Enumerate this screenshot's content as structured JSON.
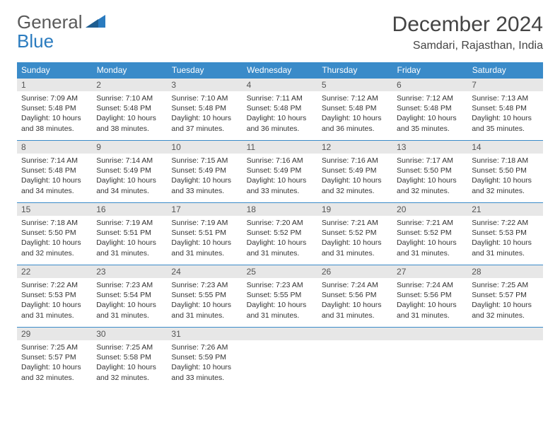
{
  "logo": {
    "line1": "General",
    "line2": "Blue",
    "text_color": "#5a5a5a",
    "accent_color": "#2a7bbf"
  },
  "title": "December 2024",
  "location": "Samdari, Rajasthan, India",
  "header_bg": "#3a8bc9",
  "header_fg": "#ffffff",
  "daynum_bg": "#e7e7e7",
  "border_color": "#3a8bc9",
  "weekdays": [
    "Sunday",
    "Monday",
    "Tuesday",
    "Wednesday",
    "Thursday",
    "Friday",
    "Saturday"
  ],
  "days": [
    {
      "n": "1",
      "sr": "7:09 AM",
      "ss": "5:48 PM",
      "dl": "10 hours and 38 minutes."
    },
    {
      "n": "2",
      "sr": "7:10 AM",
      "ss": "5:48 PM",
      "dl": "10 hours and 38 minutes."
    },
    {
      "n": "3",
      "sr": "7:10 AM",
      "ss": "5:48 PM",
      "dl": "10 hours and 37 minutes."
    },
    {
      "n": "4",
      "sr": "7:11 AM",
      "ss": "5:48 PM",
      "dl": "10 hours and 36 minutes."
    },
    {
      "n": "5",
      "sr": "7:12 AM",
      "ss": "5:48 PM",
      "dl": "10 hours and 36 minutes."
    },
    {
      "n": "6",
      "sr": "7:12 AM",
      "ss": "5:48 PM",
      "dl": "10 hours and 35 minutes."
    },
    {
      "n": "7",
      "sr": "7:13 AM",
      "ss": "5:48 PM",
      "dl": "10 hours and 35 minutes."
    },
    {
      "n": "8",
      "sr": "7:14 AM",
      "ss": "5:48 PM",
      "dl": "10 hours and 34 minutes."
    },
    {
      "n": "9",
      "sr": "7:14 AM",
      "ss": "5:49 PM",
      "dl": "10 hours and 34 minutes."
    },
    {
      "n": "10",
      "sr": "7:15 AM",
      "ss": "5:49 PM",
      "dl": "10 hours and 33 minutes."
    },
    {
      "n": "11",
      "sr": "7:16 AM",
      "ss": "5:49 PM",
      "dl": "10 hours and 33 minutes."
    },
    {
      "n": "12",
      "sr": "7:16 AM",
      "ss": "5:49 PM",
      "dl": "10 hours and 32 minutes."
    },
    {
      "n": "13",
      "sr": "7:17 AM",
      "ss": "5:50 PM",
      "dl": "10 hours and 32 minutes."
    },
    {
      "n": "14",
      "sr": "7:18 AM",
      "ss": "5:50 PM",
      "dl": "10 hours and 32 minutes."
    },
    {
      "n": "15",
      "sr": "7:18 AM",
      "ss": "5:50 PM",
      "dl": "10 hours and 32 minutes."
    },
    {
      "n": "16",
      "sr": "7:19 AM",
      "ss": "5:51 PM",
      "dl": "10 hours and 31 minutes."
    },
    {
      "n": "17",
      "sr": "7:19 AM",
      "ss": "5:51 PM",
      "dl": "10 hours and 31 minutes."
    },
    {
      "n": "18",
      "sr": "7:20 AM",
      "ss": "5:52 PM",
      "dl": "10 hours and 31 minutes."
    },
    {
      "n": "19",
      "sr": "7:21 AM",
      "ss": "5:52 PM",
      "dl": "10 hours and 31 minutes."
    },
    {
      "n": "20",
      "sr": "7:21 AM",
      "ss": "5:52 PM",
      "dl": "10 hours and 31 minutes."
    },
    {
      "n": "21",
      "sr": "7:22 AM",
      "ss": "5:53 PM",
      "dl": "10 hours and 31 minutes."
    },
    {
      "n": "22",
      "sr": "7:22 AM",
      "ss": "5:53 PM",
      "dl": "10 hours and 31 minutes."
    },
    {
      "n": "23",
      "sr": "7:23 AM",
      "ss": "5:54 PM",
      "dl": "10 hours and 31 minutes."
    },
    {
      "n": "24",
      "sr": "7:23 AM",
      "ss": "5:55 PM",
      "dl": "10 hours and 31 minutes."
    },
    {
      "n": "25",
      "sr": "7:23 AM",
      "ss": "5:55 PM",
      "dl": "10 hours and 31 minutes."
    },
    {
      "n": "26",
      "sr": "7:24 AM",
      "ss": "5:56 PM",
      "dl": "10 hours and 31 minutes."
    },
    {
      "n": "27",
      "sr": "7:24 AM",
      "ss": "5:56 PM",
      "dl": "10 hours and 31 minutes."
    },
    {
      "n": "28",
      "sr": "7:25 AM",
      "ss": "5:57 PM",
      "dl": "10 hours and 32 minutes."
    },
    {
      "n": "29",
      "sr": "7:25 AM",
      "ss": "5:57 PM",
      "dl": "10 hours and 32 minutes."
    },
    {
      "n": "30",
      "sr": "7:25 AM",
      "ss": "5:58 PM",
      "dl": "10 hours and 32 minutes."
    },
    {
      "n": "31",
      "sr": "7:26 AM",
      "ss": "5:59 PM",
      "dl": "10 hours and 33 minutes."
    }
  ],
  "labels": {
    "sunrise": "Sunrise: ",
    "sunset": "Sunset: ",
    "daylight": "Daylight: "
  }
}
